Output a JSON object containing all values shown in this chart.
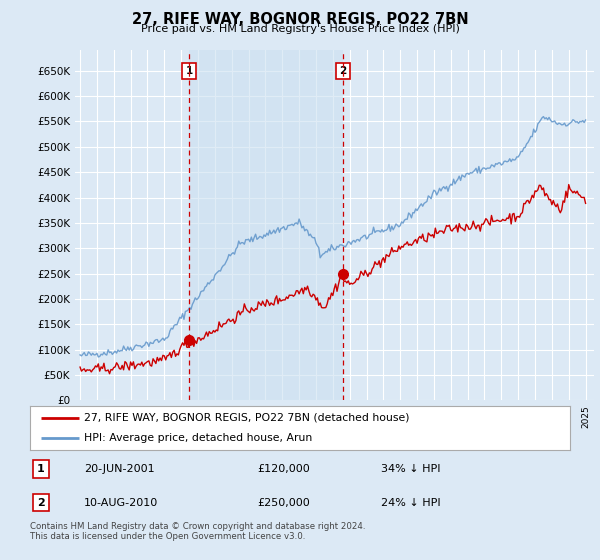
{
  "title": "27, RIFE WAY, BOGNOR REGIS, PO22 7BN",
  "subtitle": "Price paid vs. HM Land Registry's House Price Index (HPI)",
  "legend_line1": "27, RIFE WAY, BOGNOR REGIS, PO22 7BN (detached house)",
  "legend_line2": "HPI: Average price, detached house, Arun",
  "transaction1": {
    "label": "1",
    "date": "20-JUN-2001",
    "price": "£120,000",
    "rel": "34% ↓ HPI",
    "year": 2001.47,
    "value": 120000
  },
  "transaction2": {
    "label": "2",
    "date": "10-AUG-2010",
    "price": "£250,000",
    "rel": "24% ↓ HPI",
    "year": 2010.61,
    "value": 250000
  },
  "footer": "Contains HM Land Registry data © Crown copyright and database right 2024.\nThis data is licensed under the Open Government Licence v3.0.",
  "hpi_color": "#6699cc",
  "price_color": "#cc0000",
  "shade_color": "#ddeeff",
  "background_color": "#dce9f5",
  "plot_bg_color": "#dce9f5",
  "grid_color": "#ffffff",
  "legend_bg": "#ffffff",
  "table_bg": "#ffffff",
  "yticks": [
    0,
    50000,
    100000,
    150000,
    200000,
    250000,
    300000,
    350000,
    400000,
    450000,
    500000,
    550000,
    600000,
    650000
  ],
  "ylim": [
    0,
    690000
  ],
  "xlim_start": 1994.7,
  "xlim_end": 2025.5
}
